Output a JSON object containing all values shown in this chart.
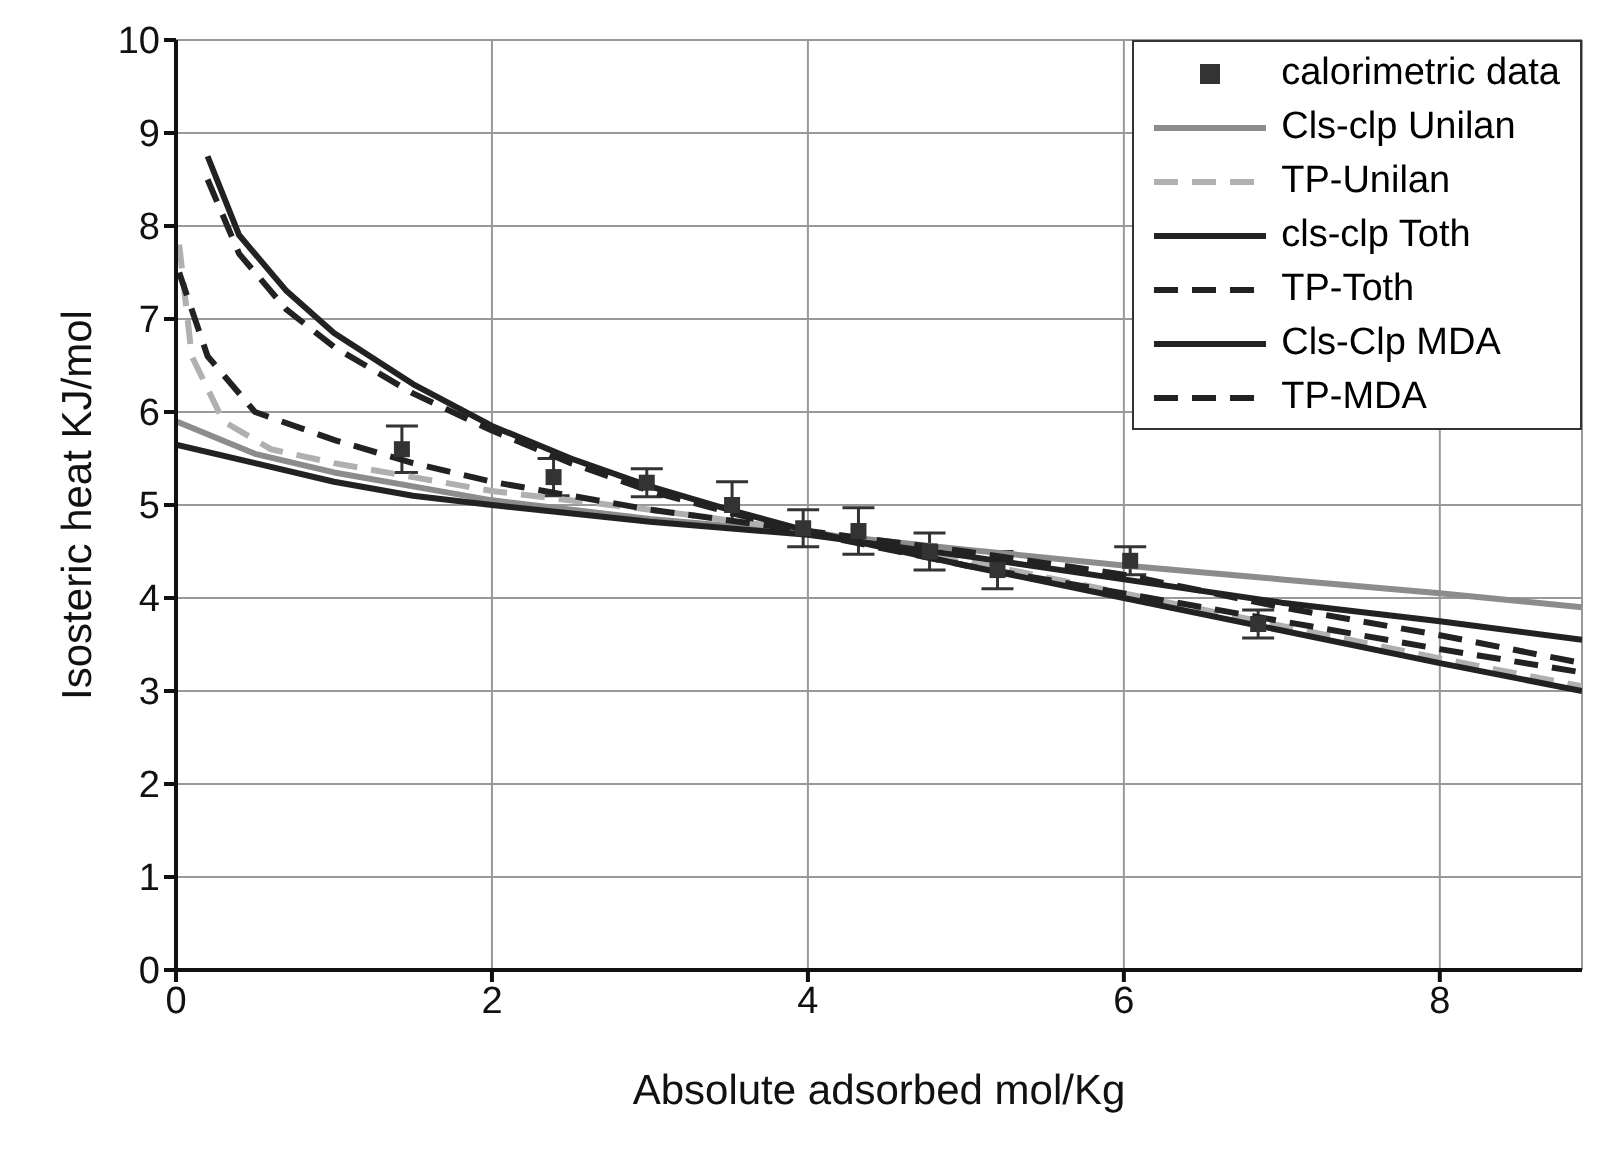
{
  "chart_data": {
    "type": "line",
    "xlabel": "Absolute adsorbed mol/Kg",
    "ylabel": "Isosteric heat KJ/mol",
    "xlim": [
      0,
      8.9
    ],
    "xticks": [
      0,
      2,
      4,
      6,
      8
    ],
    "ylim": [
      0,
      10
    ],
    "yticks": [
      0,
      1,
      2,
      3,
      4,
      5,
      6,
      7,
      8,
      9,
      10
    ],
    "grid": true,
    "legend": "top right",
    "series": [
      {
        "name": "calorimetric data",
        "type": "scatter",
        "marker": "square",
        "color": "#333333",
        "x": [
          1.43,
          2.39,
          2.98,
          3.52,
          3.97,
          4.32,
          4.77,
          5.2,
          6.04,
          6.85
        ],
        "values": [
          5.6,
          5.3,
          5.24,
          5.0,
          4.75,
          4.72,
          4.5,
          4.3,
          4.4,
          3.72
        ],
        "errors": [
          0.25,
          0.2,
          0.15,
          0.25,
          0.2,
          0.25,
          0.2,
          0.2,
          0.15,
          0.15
        ]
      },
      {
        "name": "Cls-clp Unilan",
        "color": "#8c8c8c",
        "line_style": "solid",
        "x": [
          0,
          0.5,
          1,
          1.5,
          2,
          3,
          4,
          5,
          6,
          7,
          8,
          8.9
        ],
        "values": [
          5.9,
          5.55,
          5.35,
          5.2,
          5.05,
          4.85,
          4.7,
          4.52,
          4.35,
          4.2,
          4.05,
          3.9
        ]
      },
      {
        "name": "TP-Unilan",
        "color": "#b0b0b0",
        "line_style": "dashed",
        "x": [
          0.02,
          0.1,
          0.3,
          0.6,
          1,
          1.5,
          2,
          3,
          4,
          5,
          6,
          7,
          8,
          8.9
        ],
        "values": [
          7.8,
          6.6,
          5.9,
          5.6,
          5.45,
          5.3,
          5.15,
          4.95,
          4.72,
          4.4,
          4.05,
          3.7,
          3.35,
          3.05
        ]
      },
      {
        "name": "cls-clp Toth",
        "color": "#222222",
        "line_style": "solid",
        "x": [
          0.2,
          0.4,
          0.7,
          1,
          1.5,
          2,
          2.5,
          3,
          3.5,
          4,
          5,
          6,
          7,
          8,
          8.9
        ],
        "values": [
          8.75,
          7.9,
          7.3,
          6.85,
          6.3,
          5.85,
          5.5,
          5.2,
          4.95,
          4.72,
          4.35,
          4.0,
          3.65,
          3.3,
          3.0
        ]
      },
      {
        "name": "TP-Toth",
        "color": "#222222",
        "line_style": "dashed",
        "x": [
          0.2,
          0.4,
          0.7,
          1,
          1.5,
          2,
          2.5,
          3,
          3.5,
          4,
          5,
          6,
          7,
          8,
          8.9
        ],
        "values": [
          8.5,
          7.7,
          7.1,
          6.7,
          6.2,
          5.8,
          5.45,
          5.15,
          4.92,
          4.7,
          4.35,
          4.05,
          3.75,
          3.45,
          3.2
        ]
      },
      {
        "name": "Cls-Clp MDA",
        "color": "#222222",
        "line_style": "solid",
        "x": [
          0,
          0.5,
          1,
          1.5,
          2,
          3,
          4,
          5,
          6,
          7,
          8,
          8.9
        ],
        "values": [
          5.65,
          5.45,
          5.25,
          5.1,
          5.0,
          4.82,
          4.68,
          4.45,
          4.2,
          3.95,
          3.75,
          3.55
        ]
      },
      {
        "name": "TP-MDA",
        "color": "#222222",
        "line_style": "dashed",
        "x": [
          0.02,
          0.2,
          0.5,
          1,
          1.5,
          2,
          2.5,
          3,
          4,
          5,
          6,
          7,
          8,
          8.9
        ],
        "values": [
          7.5,
          6.6,
          6.0,
          5.7,
          5.45,
          5.25,
          5.1,
          4.95,
          4.72,
          4.5,
          4.25,
          3.9,
          3.6,
          3.3
        ]
      }
    ]
  }
}
